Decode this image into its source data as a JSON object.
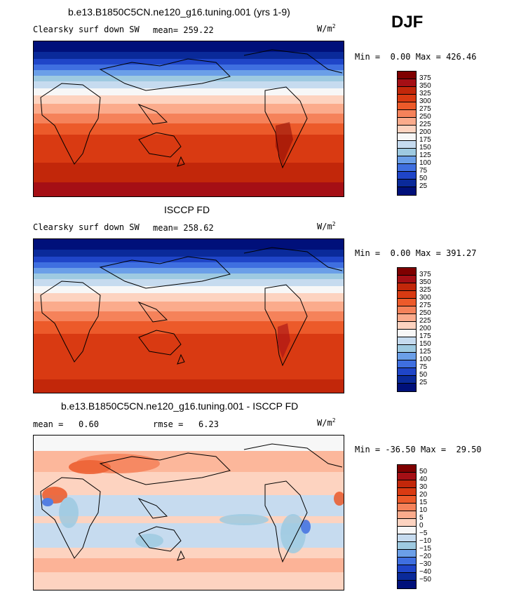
{
  "season": "DJF",
  "panels": [
    {
      "title": "b.e13.B1850C5CN.ne120_g16.tuning.001 (yrs 1-9)",
      "field": "Clearsky surf down SW",
      "stat1_label": "mean=",
      "stat1_value": "259.22",
      "units": "W/m",
      "units_sup": "2",
      "min_label": "Min =",
      "min_value": "0.00",
      "max_label": "Max =",
      "max_value": "426.46"
    },
    {
      "title": "ISCCP FD",
      "field": "Clearsky surf down SW",
      "stat1_label": "mean=",
      "stat1_value": "258.62",
      "units": "W/m",
      "units_sup": "2",
      "min_label": "Min =",
      "min_value": "0.00",
      "max_label": "Max =",
      "max_value": "391.27"
    },
    {
      "title": "b.e13.B1850C5CN.ne120_g16.tuning.001 - ISCCP FD",
      "stat1_label": "mean =",
      "stat1_value": "0.60",
      "stat2_label": "rmse =",
      "stat2_value": "6.23",
      "units": "W/m",
      "units_sup": "2",
      "min_label": "Min =",
      "min_value": "-36.50",
      "max_label": "Max =",
      "max_value": "29.50"
    }
  ],
  "chart_data": [
    {
      "type": "heatmap",
      "title": "b.e13.B1850C5CN.ne120_g16.tuning.001 (yrs 1-9)",
      "variable": "Clearsky surf down SW",
      "units": "W/m2",
      "season": "DJF",
      "mean": 259.22,
      "min": 0.0,
      "max": 426.46,
      "colorbar_levels": [
        375,
        350,
        325,
        300,
        275,
        250,
        225,
        200,
        175,
        150,
        125,
        100,
        75,
        50,
        25
      ],
      "colorbar_colors": [
        "#7f0000",
        "#a50f15",
        "#c2270a",
        "#d93a12",
        "#ec5a2a",
        "#f5825a",
        "#fbab8c",
        "#fdd3c0",
        "#f7f7f7",
        "#c6dbef",
        "#9ecae1",
        "#6b9fe8",
        "#3f6fe0",
        "#1f45c8",
        "#0a2a9a",
        "#00107a"
      ]
    },
    {
      "type": "heatmap",
      "title": "ISCCP FD",
      "variable": "Clearsky surf down SW",
      "units": "W/m2",
      "season": "DJF",
      "mean": 258.62,
      "min": 0.0,
      "max": 391.27,
      "colorbar_levels": [
        375,
        350,
        325,
        300,
        275,
        250,
        225,
        200,
        175,
        150,
        125,
        100,
        75,
        50,
        25
      ],
      "colorbar_colors": [
        "#7f0000",
        "#a50f15",
        "#c2270a",
        "#d93a12",
        "#ec5a2a",
        "#f5825a",
        "#fbab8c",
        "#fdd3c0",
        "#f7f7f7",
        "#c6dbef",
        "#9ecae1",
        "#6b9fe8",
        "#3f6fe0",
        "#1f45c8",
        "#0a2a9a",
        "#00107a"
      ]
    },
    {
      "type": "heatmap",
      "title": "b.e13.B1850C5CN.ne120_g16.tuning.001 - ISCCP FD",
      "units": "W/m2",
      "season": "DJF",
      "mean": 0.6,
      "rmse": 6.23,
      "min": -36.5,
      "max": 29.5,
      "colorbar_levels": [
        50,
        40,
        30,
        20,
        15,
        10,
        5,
        0,
        -5,
        -10,
        -15,
        -20,
        -30,
        -40,
        -50
      ],
      "colorbar_colors": [
        "#7f0000",
        "#a50f15",
        "#c2270a",
        "#d93a12",
        "#ec5a2a",
        "#f5825a",
        "#fbab8c",
        "#fdd3c0",
        "#f7f7f7",
        "#c6dbef",
        "#9ecae1",
        "#6b9fe8",
        "#3f6fe0",
        "#1f45c8",
        "#0a2a9a",
        "#00107a"
      ]
    }
  ]
}
